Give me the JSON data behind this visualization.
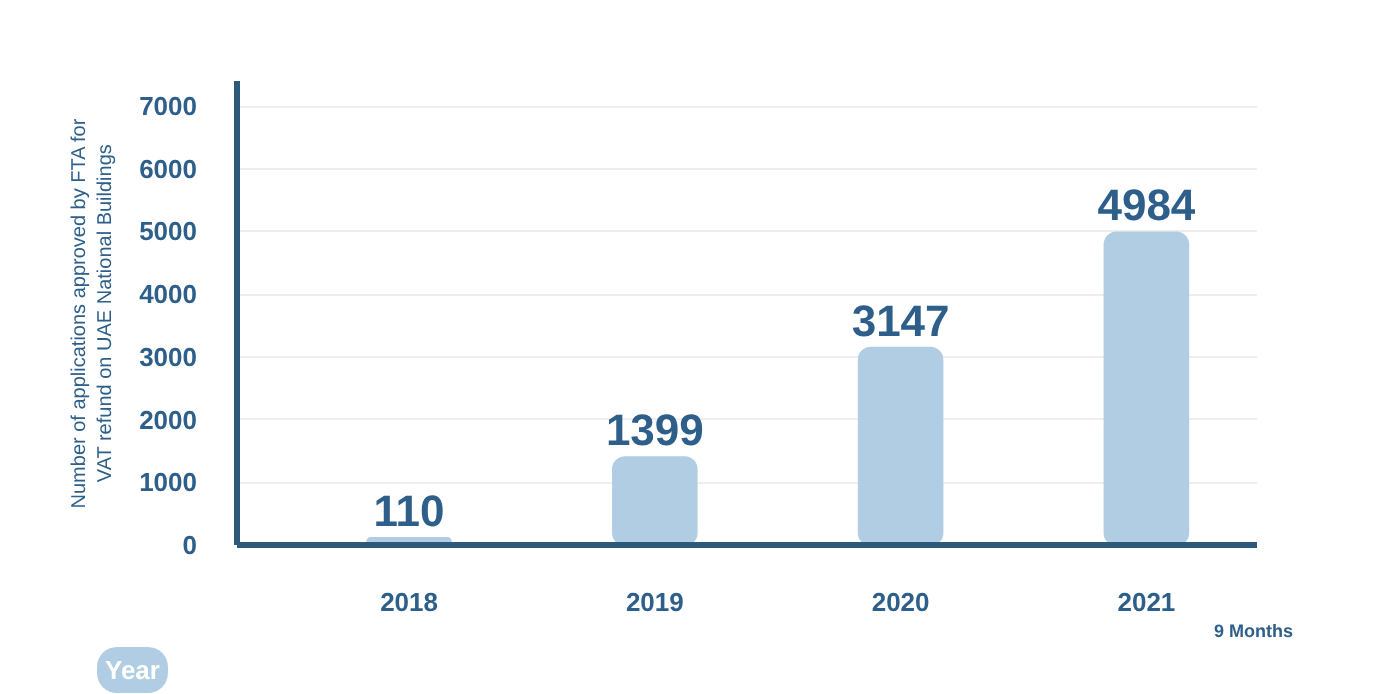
{
  "chart_data": {
    "type": "bar",
    "categories": [
      "2018",
      "2019",
      "2020",
      "2021"
    ],
    "values": [
      110,
      1399,
      3147,
      4984
    ],
    "color": "#b0cde3",
    "ylabel": "Number of applications approved by FTA for\nVAT refund on UAE National Buildings",
    "xlabel": "Year",
    "annotations": [
      "9 Months"
    ],
    "ylim": [
      0,
      7400
    ],
    "yticks": [
      0,
      1000,
      2000,
      3000,
      4000,
      5000,
      6000,
      7000
    ],
    "grid": "y",
    "data_labels": true
  }
}
